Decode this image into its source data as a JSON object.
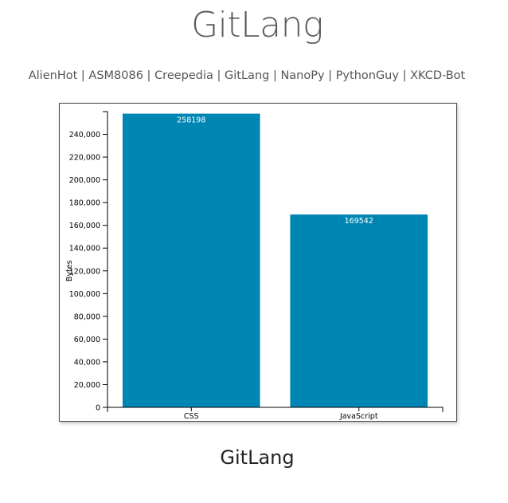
{
  "header": {
    "title": "GitLang"
  },
  "nav": {
    "items": [
      "AlienHot",
      "ASM8086",
      "Creepedia",
      "GitLang",
      "NanoPy",
      "PythonGuy",
      "XKCD-Bot"
    ],
    "separator": "|"
  },
  "footer": {
    "title": "GitLang"
  },
  "colors": {
    "bar": "#0086b3",
    "bar_label": "#ffffff",
    "axis": "#000000"
  },
  "chart_data": {
    "type": "bar",
    "categories": [
      "CSS",
      "JavaScript"
    ],
    "values": [
      258198,
      169542
    ],
    "ylabel": "Bytes",
    "xlabel": "",
    "ylim": [
      0,
      260000
    ],
    "yticks": [
      0,
      20000,
      40000,
      60000,
      80000,
      100000,
      120000,
      140000,
      160000,
      180000,
      200000,
      220000,
      240000
    ],
    "ytick_labels": [
      "0",
      "20,000",
      "40,000",
      "60,000",
      "80,000",
      "100,000",
      "120,000",
      "140,000",
      "160,000",
      "180,000",
      "200,000",
      "220,000",
      "240,000"
    ],
    "bar_labels": [
      "258198",
      "169542"
    ],
    "grid": false,
    "legend": "none"
  }
}
